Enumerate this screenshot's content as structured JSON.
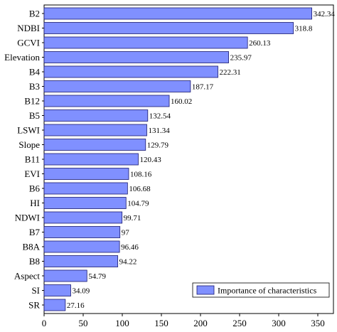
{
  "chart_data": {
    "type": "bar",
    "orientation": "horizontal",
    "categories": [
      "B2",
      "NDBI",
      "GCVI",
      "Elevation",
      "B4",
      "B3",
      "B12",
      "B5",
      "LSWI",
      "Slope",
      "B11",
      "EVI",
      "B6",
      "HI",
      "NDWI",
      "B7",
      "B8A",
      "B8",
      "Aspect",
      "SI",
      "SR"
    ],
    "value_labels": [
      "342.34",
      "318.8",
      "260.13",
      "235.97",
      "222.31",
      "187.17",
      "160.02",
      "132.54",
      "131.34",
      "129.79",
      "120.43",
      "108.16",
      "106.68",
      "104.79",
      "99.71",
      "97",
      "96.46",
      "94.22",
      "54.79",
      "34.09",
      "27.16"
    ],
    "series": [
      {
        "name": "Importance of characteristics",
        "values": [
          342.34,
          318.8,
          260.13,
          235.97,
          222.31,
          187.17,
          160.02,
          132.54,
          131.34,
          129.79,
          120.43,
          108.16,
          106.68,
          104.79,
          99.71,
          97,
          96.46,
          94.22,
          54.79,
          34.09,
          27.16
        ],
        "color": "#8090ff"
      }
    ],
    "xlim": [
      0,
      370
    ],
    "xticks": [
      "0",
      "50",
      "100",
      "150",
      "200",
      "250",
      "300",
      "350"
    ],
    "xtick_values": [
      0,
      50,
      100,
      150,
      200,
      250,
      300,
      350
    ],
    "title": "",
    "xlabel": "",
    "ylabel": "",
    "grid": false,
    "legend": {
      "position": "bottom-right",
      "label": "Importance of characteristics"
    },
    "colors": {
      "bar_fill": "#8090ff",
      "bar_stroke": "#1a1a6e",
      "axis": "#000000"
    }
  }
}
